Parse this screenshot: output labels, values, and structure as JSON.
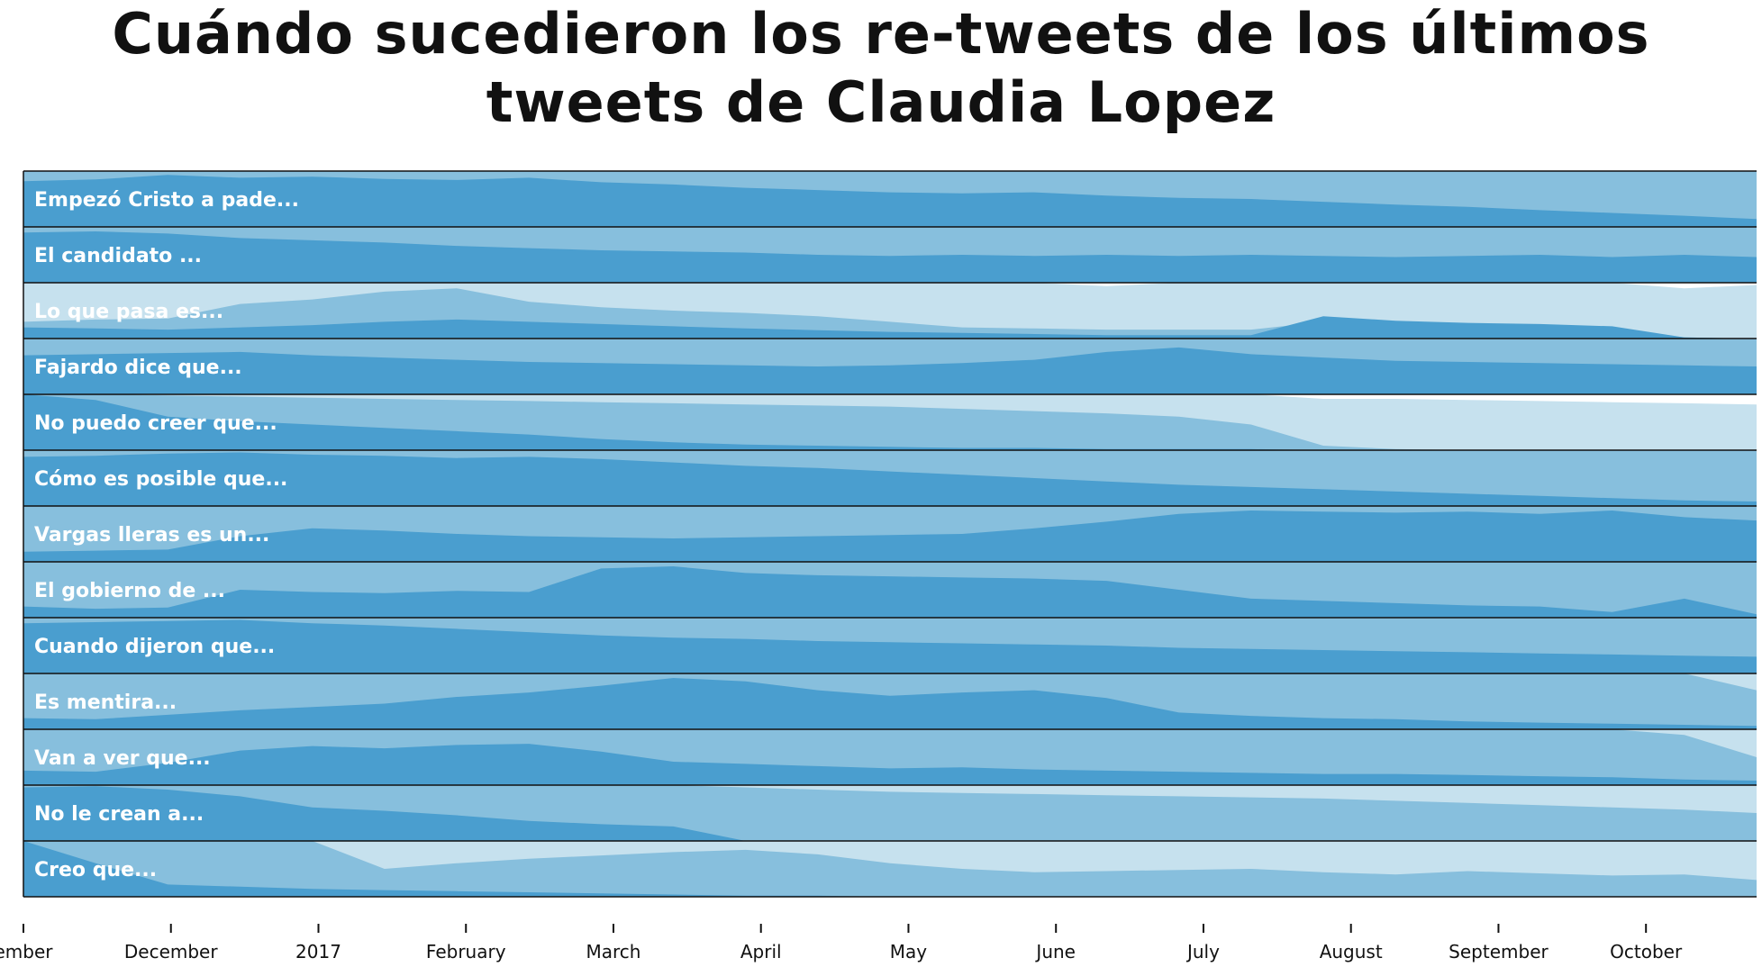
{
  "chart_data": {
    "type": "area",
    "title": "Cuándo sucedieron los re-tweets de los últimos tweets de Claudia Lopez",
    "x_axis": {
      "tick_labels": [
        "ember",
        "December",
        "2017",
        "February",
        "March",
        "April",
        "May",
        "June",
        "July",
        "August",
        "September",
        "October"
      ],
      "tick_positions_months": [
        0,
        1,
        2,
        3,
        4,
        5,
        6,
        7,
        8,
        9,
        10,
        11
      ],
      "range_months": [
        0,
        11.75
      ]
    },
    "y_axis": {
      "range": [
        0,
        1
      ],
      "visible": false
    },
    "grid": false,
    "legend": "none",
    "colors": {
      "dark": "#4a9ecf",
      "medium": "#87bfdd",
      "light": "#c6e1ee",
      "separator": "#111111"
    },
    "series": [
      {
        "name": "Empezó Cristo a pade...",
        "layers": {
          "dark": [
            0.82,
            0.85,
            0.93,
            0.88,
            0.9,
            0.86,
            0.84,
            0.88,
            0.8,
            0.76,
            0.7,
            0.66,
            0.62,
            0.6,
            0.62,
            0.56,
            0.52,
            0.5,
            0.45,
            0.4,
            0.36,
            0.3,
            0.25,
            0.2,
            0.14
          ],
          "medium": [
            1,
            1,
            1,
            1,
            1,
            1,
            1,
            1,
            1,
            1,
            1,
            1,
            1,
            1,
            1,
            1,
            1,
            1,
            1,
            1,
            1,
            1,
            1,
            1,
            1
          ],
          "light": [
            1,
            1,
            1,
            1,
            1,
            1,
            1,
            1,
            1,
            1,
            1,
            1,
            1,
            1,
            1,
            1,
            1,
            1,
            1,
            1,
            1,
            1,
            1,
            1,
            1
          ]
        }
      },
      {
        "name": "El candidato ...",
        "layers": {
          "dark": [
            0.9,
            0.92,
            0.88,
            0.8,
            0.76,
            0.72,
            0.66,
            0.62,
            0.58,
            0.56,
            0.54,
            0.5,
            0.48,
            0.5,
            0.48,
            0.5,
            0.48,
            0.5,
            0.48,
            0.46,
            0.48,
            0.5,
            0.46,
            0.5,
            0.46
          ],
          "medium": [
            1,
            1,
            1,
            1,
            1,
            1,
            1,
            1,
            1,
            1,
            1,
            1,
            1,
            1,
            1,
            1,
            1,
            1,
            1,
            1,
            1,
            1,
            1,
            1,
            1
          ],
          "light": [
            1,
            1,
            1,
            1,
            1,
            1,
            1,
            1,
            1,
            1,
            1,
            1,
            1,
            1,
            1,
            1,
            1,
            1,
            1,
            1,
            1,
            1,
            1,
            1,
            1
          ]
        }
      },
      {
        "name": "Lo que pasa es...",
        "layers": {
          "dark": [
            0.2,
            0.18,
            0.16,
            0.2,
            0.24,
            0.3,
            0.34,
            0.3,
            0.26,
            0.22,
            0.18,
            0.15,
            0.12,
            0.1,
            0.08,
            0.06,
            0.06,
            0.06,
            0.4,
            0.32,
            0.28,
            0.26,
            0.22,
            0.02,
            0.0
          ],
          "medium": [
            0.3,
            0.34,
            0.36,
            0.62,
            0.7,
            0.84,
            0.9,
            0.66,
            0.56,
            0.5,
            0.46,
            0.4,
            0.3,
            0.2,
            0.18,
            0.16,
            0.16,
            0.16,
            0.3,
            0.26,
            0.24,
            0.22,
            0.2,
            0.02,
            0.0
          ],
          "light": [
            1,
            1,
            1,
            1,
            1,
            1,
            1,
            1,
            1,
            1,
            1,
            1,
            1,
            1,
            1,
            0.94,
            1,
            1,
            1,
            1,
            1,
            1,
            1,
            0.9,
            0.96
          ]
        }
      },
      {
        "name": "Fajardo dice que...",
        "layers": {
          "dark": [
            0.7,
            0.72,
            0.74,
            0.76,
            0.7,
            0.66,
            0.62,
            0.58,
            0.56,
            0.54,
            0.52,
            0.5,
            0.52,
            0.56,
            0.62,
            0.76,
            0.84,
            0.72,
            0.66,
            0.6,
            0.58,
            0.56,
            0.54,
            0.52,
            0.5
          ],
          "medium": [
            1,
            1,
            1,
            1,
            1,
            1,
            1,
            1,
            1,
            1,
            1,
            1,
            1,
            1,
            1,
            1,
            1,
            1,
            1,
            1,
            1,
            1,
            1,
            1,
            1
          ],
          "light": [
            1,
            1,
            1,
            1,
            1,
            1,
            1,
            1,
            1,
            1,
            1,
            1,
            1,
            1,
            1,
            1,
            1,
            1,
            1,
            1,
            1,
            1,
            1,
            1,
            1
          ]
        }
      },
      {
        "name": "No puedo creer que...",
        "layers": {
          "dark": [
            1.0,
            0.9,
            0.6,
            0.52,
            0.46,
            0.4,
            0.34,
            0.28,
            0.2,
            0.14,
            0.1,
            0.08,
            0.06,
            0.04,
            0.04,
            0.02,
            0.02,
            0.02,
            0.0,
            0.0,
            0.0,
            0.0,
            0.0,
            0.0,
            0.0
          ],
          "medium": [
            1,
            1,
            0.98,
            0.96,
            0.94,
            0.92,
            0.9,
            0.88,
            0.86,
            0.84,
            0.82,
            0.8,
            0.78,
            0.74,
            0.7,
            0.66,
            0.6,
            0.46,
            0.08,
            0.02,
            0.0,
            0.0,
            0.0,
            0.0,
            0.0
          ],
          "light": [
            1,
            1,
            1,
            1,
            1,
            1,
            1,
            1,
            1,
            1,
            1,
            1,
            1,
            1,
            1,
            1,
            1,
            1,
            0.92,
            0.92,
            0.9,
            0.88,
            0.86,
            0.84,
            0.82
          ]
        }
      },
      {
        "name": "Cómo es posible que...",
        "layers": {
          "dark": [
            0.88,
            0.9,
            0.94,
            0.96,
            0.92,
            0.9,
            0.86,
            0.88,
            0.84,
            0.78,
            0.72,
            0.68,
            0.62,
            0.56,
            0.5,
            0.44,
            0.38,
            0.34,
            0.3,
            0.26,
            0.22,
            0.18,
            0.14,
            0.1,
            0.08
          ],
          "medium": [
            1,
            1,
            1,
            1,
            1,
            1,
            1,
            1,
            1,
            1,
            1,
            1,
            1,
            1,
            1,
            1,
            1,
            1,
            1,
            1,
            1,
            1,
            1,
            1,
            1
          ],
          "light": [
            1,
            1,
            1,
            1,
            1,
            1,
            1,
            1,
            1,
            1,
            1,
            1,
            1,
            1,
            1,
            1,
            1,
            1,
            1,
            1,
            1,
            1,
            1,
            1,
            1
          ]
        }
      },
      {
        "name": "Vargas lleras es un...",
        "layers": {
          "dark": [
            0.18,
            0.2,
            0.22,
            0.46,
            0.6,
            0.56,
            0.5,
            0.46,
            0.44,
            0.42,
            0.44,
            0.46,
            0.48,
            0.5,
            0.6,
            0.72,
            0.86,
            0.92,
            0.9,
            0.88,
            0.9,
            0.86,
            0.92,
            0.8,
            0.74
          ],
          "medium": [
            1,
            1,
            1,
            1,
            1,
            1,
            1,
            1,
            1,
            1,
            1,
            1,
            1,
            1,
            1,
            1,
            1,
            1,
            1,
            1,
            1,
            1,
            1,
            1,
            1
          ],
          "light": [
            1,
            1,
            1,
            1,
            1,
            1,
            1,
            1,
            1,
            1,
            1,
            1,
            1,
            1,
            1,
            1,
            1,
            1,
            1,
            1,
            1,
            1,
            1,
            1,
            1
          ]
        }
      },
      {
        "name": "El gobierno de ...",
        "layers": {
          "dark": [
            0.2,
            0.16,
            0.18,
            0.5,
            0.46,
            0.44,
            0.48,
            0.46,
            0.88,
            0.92,
            0.8,
            0.76,
            0.74,
            0.72,
            0.7,
            0.66,
            0.5,
            0.34,
            0.3,
            0.26,
            0.22,
            0.2,
            0.1,
            0.34,
            0.06
          ],
          "medium": [
            1,
            1,
            1,
            1,
            1,
            1,
            1,
            1,
            1,
            1,
            1,
            1,
            1,
            1,
            1,
            1,
            1,
            1,
            1,
            1,
            1,
            1,
            1,
            1,
            1
          ],
          "light": [
            1,
            1,
            1,
            1,
            1,
            1,
            1,
            1,
            1,
            1,
            1,
            1,
            1,
            1,
            1,
            1,
            1,
            1,
            1,
            1,
            1,
            1,
            1,
            1,
            1
          ]
        }
      },
      {
        "name": "Cuando dijeron que...",
        "layers": {
          "dark": [
            0.9,
            0.92,
            0.94,
            0.96,
            0.9,
            0.86,
            0.8,
            0.74,
            0.68,
            0.64,
            0.62,
            0.58,
            0.56,
            0.54,
            0.52,
            0.5,
            0.46,
            0.44,
            0.42,
            0.4,
            0.38,
            0.36,
            0.34,
            0.32,
            0.3
          ],
          "medium": [
            1,
            1,
            1,
            1,
            1,
            1,
            1,
            1,
            1,
            1,
            1,
            1,
            1,
            1,
            1,
            1,
            1,
            1,
            1,
            1,
            1,
            1,
            1,
            1,
            1
          ],
          "light": [
            1,
            1,
            1,
            1,
            1,
            1,
            1,
            1,
            1,
            1,
            1,
            1,
            1,
            1,
            1,
            1,
            1,
            1,
            1,
            1,
            1,
            1,
            1,
            1,
            1
          ]
        }
      },
      {
        "name": "Es mentira...",
        "layers": {
          "dark": [
            0.2,
            0.18,
            0.26,
            0.34,
            0.4,
            0.46,
            0.58,
            0.66,
            0.78,
            0.92,
            0.86,
            0.7,
            0.6,
            0.66,
            0.7,
            0.56,
            0.3,
            0.24,
            0.2,
            0.18,
            0.14,
            0.12,
            0.1,
            0.08,
            0.06
          ],
          "medium": [
            1,
            1,
            1,
            1,
            1,
            1,
            1,
            1,
            1,
            1,
            1,
            1,
            1,
            1,
            1,
            1,
            1,
            1,
            1,
            1,
            1,
            1,
            1,
            1,
            0.7
          ],
          "light": [
            1,
            1,
            1,
            1,
            1,
            1,
            1,
            1,
            1,
            1,
            1,
            1,
            1,
            1,
            1,
            1,
            1,
            1,
            1,
            1,
            1,
            1,
            1,
            1,
            1
          ]
        }
      },
      {
        "name": "Van a ver que...",
        "layers": {
          "dark": [
            0.26,
            0.24,
            0.4,
            0.62,
            0.7,
            0.66,
            0.72,
            0.74,
            0.6,
            0.42,
            0.38,
            0.34,
            0.3,
            0.32,
            0.28,
            0.26,
            0.24,
            0.22,
            0.2,
            0.2,
            0.18,
            0.16,
            0.14,
            0.1,
            0.08
          ],
          "medium": [
            1,
            1,
            1,
            1,
            1,
            1,
            1,
            1,
            1,
            1,
            1,
            1,
            1,
            1,
            1,
            1,
            1,
            1,
            1,
            1,
            1,
            1,
            1,
            0.9,
            0.5
          ],
          "light": [
            1,
            1,
            1,
            1,
            1,
            1,
            1,
            1,
            1,
            1,
            1,
            1,
            1,
            1,
            1,
            1,
            1,
            1,
            1,
            1,
            1,
            1,
            1,
            1,
            1
          ]
        }
      },
      {
        "name": "No le crean a...",
        "layers": {
          "dark": [
            0.96,
            0.98,
            0.92,
            0.8,
            0.6,
            0.54,
            0.46,
            0.36,
            0.3,
            0.26,
            0.0,
            0.0,
            0.0,
            0.0,
            0.0,
            0.0,
            0.0,
            0.0,
            0.0,
            0.0,
            0.0,
            0.0,
            0.0,
            0.0,
            0.0
          ],
          "medium": [
            1,
            1,
            1,
            1,
            1,
            1,
            1,
            1,
            1,
            1,
            0.96,
            0.92,
            0.88,
            0.86,
            0.84,
            0.82,
            0.8,
            0.78,
            0.76,
            0.72,
            0.68,
            0.64,
            0.6,
            0.56,
            0.5
          ],
          "light": [
            1,
            1,
            1,
            1,
            1,
            1,
            1,
            1,
            1,
            1,
            1,
            1,
            1,
            1,
            1,
            1,
            1,
            1,
            1,
            1,
            1,
            1,
            1,
            1,
            1
          ]
        }
      },
      {
        "name": "Creo que...",
        "layers": {
          "dark": [
            1.0,
            0.6,
            0.22,
            0.18,
            0.14,
            0.12,
            0.1,
            0.08,
            0.06,
            0.04,
            0.02,
            0.02,
            0.0,
            0.0,
            0.0,
            0.0,
            0.0,
            0.0,
            0.0,
            0.0,
            0.0,
            0.0,
            0.0,
            0.0,
            0.0
          ],
          "medium": [
            1,
            1,
            1,
            1,
            1,
            0.5,
            0.6,
            0.68,
            0.74,
            0.8,
            0.84,
            0.76,
            0.6,
            0.5,
            0.44,
            0.46,
            0.48,
            0.5,
            0.44,
            0.4,
            0.46,
            0.42,
            0.38,
            0.4,
            0.3
          ],
          "light": [
            1,
            1,
            1,
            1,
            1,
            1,
            1,
            1,
            1,
            1,
            1,
            1,
            1,
            1,
            1,
            1,
            1,
            1,
            1,
            1,
            1,
            1,
            1,
            1,
            1
          ]
        }
      }
    ]
  }
}
